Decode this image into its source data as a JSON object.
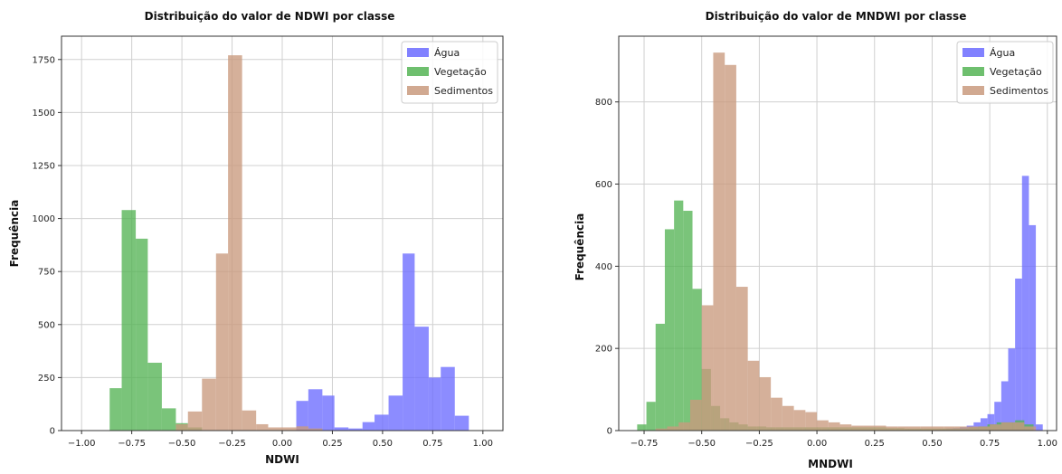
{
  "chart_data": [
    {
      "type": "histogram",
      "title": "Distribuição do valor de NDWI por classe",
      "xlabel": "NDWI",
      "ylabel": "Frequência",
      "xlim": [
        -1.1,
        1.1
      ],
      "ylim": [
        0,
        1860
      ],
      "xticks": [
        -1.0,
        -0.75,
        -0.5,
        -0.25,
        0.0,
        0.25,
        0.5,
        0.75,
        1.0
      ],
      "xtick_labels": [
        "−1.00",
        "−0.75",
        "−0.50",
        "−0.25",
        "0.00",
        "0.25",
        "0.50",
        "0.75",
        "1.00"
      ],
      "yticks": [
        0,
        250,
        500,
        750,
        1000,
        1250,
        1500,
        1750
      ],
      "yticks_labels": [
        "0",
        "250",
        "500",
        "750",
        "1000",
        "1250",
        "1500",
        "1750"
      ],
      "grid": true,
      "legend_position": "top-right",
      "series": [
        {
          "name": "Água",
          "color": "#6b6bff",
          "bins": [
            [
              0.07,
              0.13,
              140
            ],
            [
              0.13,
              0.2,
              195
            ],
            [
              0.2,
              0.26,
              165
            ],
            [
              0.26,
              0.33,
              15
            ],
            [
              0.33,
              0.4,
              10
            ],
            [
              0.4,
              0.46,
              40
            ],
            [
              0.46,
              0.53,
              75
            ],
            [
              0.53,
              0.6,
              165
            ],
            [
              0.6,
              0.66,
              835
            ],
            [
              0.66,
              0.73,
              490
            ],
            [
              0.73,
              0.79,
              250
            ],
            [
              0.79,
              0.86,
              300
            ],
            [
              0.86,
              0.93,
              70
            ]
          ]
        },
        {
          "name": "Vegetação",
          "color": "#55b455",
          "bins": [
            [
              -0.86,
              -0.8,
              200
            ],
            [
              -0.8,
              -0.73,
              1040
            ],
            [
              -0.73,
              -0.67,
              905
            ],
            [
              -0.67,
              -0.6,
              320
            ],
            [
              -0.6,
              -0.53,
              105
            ],
            [
              -0.53,
              -0.47,
              35
            ],
            [
              -0.47,
              -0.4,
              15
            ]
          ]
        },
        {
          "name": "Sedimentos",
          "color": "#c99a7e",
          "bins": [
            [
              -0.53,
              -0.47,
              30
            ],
            [
              -0.47,
              -0.4,
              90
            ],
            [
              -0.4,
              -0.33,
              245
            ],
            [
              -0.33,
              -0.27,
              835
            ],
            [
              -0.27,
              -0.2,
              1770
            ],
            [
              -0.2,
              -0.13,
              95
            ],
            [
              -0.13,
              -0.07,
              30
            ],
            [
              -0.07,
              0.0,
              15
            ],
            [
              0.0,
              0.07,
              15
            ],
            [
              0.07,
              0.13,
              20
            ],
            [
              0.13,
              0.2,
              10
            ]
          ]
        }
      ]
    },
    {
      "type": "histogram",
      "title": "Distribuição do valor de MNDWI por classe",
      "xlabel": "MNDWI",
      "ylabel": "Frequência",
      "xlim": [
        -0.86,
        1.04
      ],
      "ylim": [
        0,
        960
      ],
      "xticks": [
        -0.75,
        -0.5,
        -0.25,
        0.0,
        0.25,
        0.5,
        0.75,
        1.0
      ],
      "xtick_labels": [
        "−0.75",
        "−0.50",
        "−0.25",
        "0.00",
        "0.25",
        "0.50",
        "0.75",
        "1.00"
      ],
      "yticks": [
        0,
        200,
        400,
        600,
        800
      ],
      "yticks_labels": [
        "0",
        "200",
        "400",
        "600",
        "800"
      ],
      "grid": true,
      "legend_position": "top-right",
      "series": [
        {
          "name": "Água",
          "color": "#6b6bff",
          "bins": [
            [
              0.5,
              0.53,
              2
            ],
            [
              0.53,
              0.56,
              3
            ],
            [
              0.56,
              0.59,
              5
            ],
            [
              0.59,
              0.62,
              6
            ],
            [
              0.62,
              0.65,
              8
            ],
            [
              0.65,
              0.68,
              12
            ],
            [
              0.68,
              0.71,
              20
            ],
            [
              0.71,
              0.74,
              30
            ],
            [
              0.74,
              0.77,
              40
            ],
            [
              0.77,
              0.8,
              70
            ],
            [
              0.8,
              0.83,
              120
            ],
            [
              0.83,
              0.86,
              200
            ],
            [
              0.86,
              0.89,
              370
            ],
            [
              0.89,
              0.92,
              620
            ],
            [
              0.92,
              0.95,
              500
            ],
            [
              0.95,
              0.98,
              15
            ]
          ]
        },
        {
          "name": "Vegetação",
          "color": "#55b455",
          "bins": [
            [
              -0.78,
              -0.74,
              15
            ],
            [
              -0.74,
              -0.7,
              70
            ],
            [
              -0.7,
              -0.66,
              260
            ],
            [
              -0.66,
              -0.62,
              490
            ],
            [
              -0.62,
              -0.58,
              560
            ],
            [
              -0.58,
              -0.54,
              535
            ],
            [
              -0.54,
              -0.5,
              345
            ],
            [
              -0.5,
              -0.46,
              150
            ],
            [
              -0.46,
              -0.42,
              60
            ],
            [
              -0.42,
              -0.38,
              30
            ],
            [
              -0.38,
              -0.34,
              20
            ],
            [
              -0.34,
              -0.3,
              15
            ],
            [
              -0.3,
              -0.26,
              10
            ],
            [
              -0.26,
              -0.22,
              10
            ],
            [
              -0.22,
              -0.18,
              8
            ],
            [
              -0.18,
              -0.14,
              8
            ],
            [
              -0.14,
              -0.1,
              8
            ],
            [
              -0.1,
              -0.06,
              8
            ],
            [
              -0.06,
              -0.02,
              8
            ],
            [
              -0.02,
              0.02,
              8
            ],
            [
              0.02,
              0.06,
              8
            ],
            [
              0.06,
              0.1,
              8
            ],
            [
              0.1,
              0.14,
              8
            ],
            [
              0.14,
              0.18,
              8
            ],
            [
              0.18,
              0.22,
              8
            ],
            [
              0.22,
              0.26,
              8
            ],
            [
              0.26,
              0.3,
              8
            ],
            [
              0.3,
              0.34,
              6
            ],
            [
              0.34,
              0.38,
              6
            ],
            [
              0.38,
              0.42,
              5
            ],
            [
              0.42,
              0.46,
              5
            ],
            [
              0.46,
              0.5,
              5
            ],
            [
              0.5,
              0.54,
              5
            ],
            [
              0.54,
              0.58,
              5
            ],
            [
              0.58,
              0.62,
              5
            ],
            [
              0.62,
              0.66,
              5
            ],
            [
              0.66,
              0.7,
              8
            ],
            [
              0.7,
              0.74,
              10
            ],
            [
              0.74,
              0.78,
              15
            ],
            [
              0.78,
              0.82,
              20
            ],
            [
              0.82,
              0.86,
              20
            ],
            [
              0.86,
              0.9,
              25
            ],
            [
              0.9,
              0.94,
              15
            ]
          ]
        },
        {
          "name": "Sedimentos",
          "color": "#c99a7e",
          "bins": [
            [
              -0.7,
              -0.65,
              5
            ],
            [
              -0.65,
              -0.6,
              10
            ],
            [
              -0.6,
              -0.55,
              20
            ],
            [
              -0.55,
              -0.5,
              75
            ],
            [
              -0.5,
              -0.45,
              305
            ],
            [
              -0.45,
              -0.4,
              920
            ],
            [
              -0.4,
              -0.35,
              890
            ],
            [
              -0.35,
              -0.3,
              350
            ],
            [
              -0.3,
              -0.25,
              170
            ],
            [
              -0.25,
              -0.2,
              130
            ],
            [
              -0.2,
              -0.15,
              80
            ],
            [
              -0.15,
              -0.1,
              60
            ],
            [
              -0.1,
              -0.05,
              50
            ],
            [
              -0.05,
              0.0,
              45
            ],
            [
              0.0,
              0.05,
              25
            ],
            [
              0.05,
              0.1,
              20
            ],
            [
              0.1,
              0.15,
              15
            ],
            [
              0.15,
              0.2,
              12
            ],
            [
              0.2,
              0.25,
              12
            ],
            [
              0.25,
              0.3,
              12
            ],
            [
              0.3,
              0.35,
              10
            ],
            [
              0.35,
              0.4,
              10
            ],
            [
              0.4,
              0.45,
              10
            ],
            [
              0.45,
              0.5,
              10
            ],
            [
              0.5,
              0.55,
              10
            ],
            [
              0.55,
              0.6,
              10
            ],
            [
              0.6,
              0.65,
              10
            ],
            [
              0.65,
              0.7,
              10
            ],
            [
              0.7,
              0.75,
              10
            ],
            [
              0.75,
              0.8,
              15
            ],
            [
              0.8,
              0.85,
              20
            ],
            [
              0.85,
              0.9,
              20
            ],
            [
              0.9,
              0.95,
              10
            ]
          ]
        }
      ]
    }
  ]
}
